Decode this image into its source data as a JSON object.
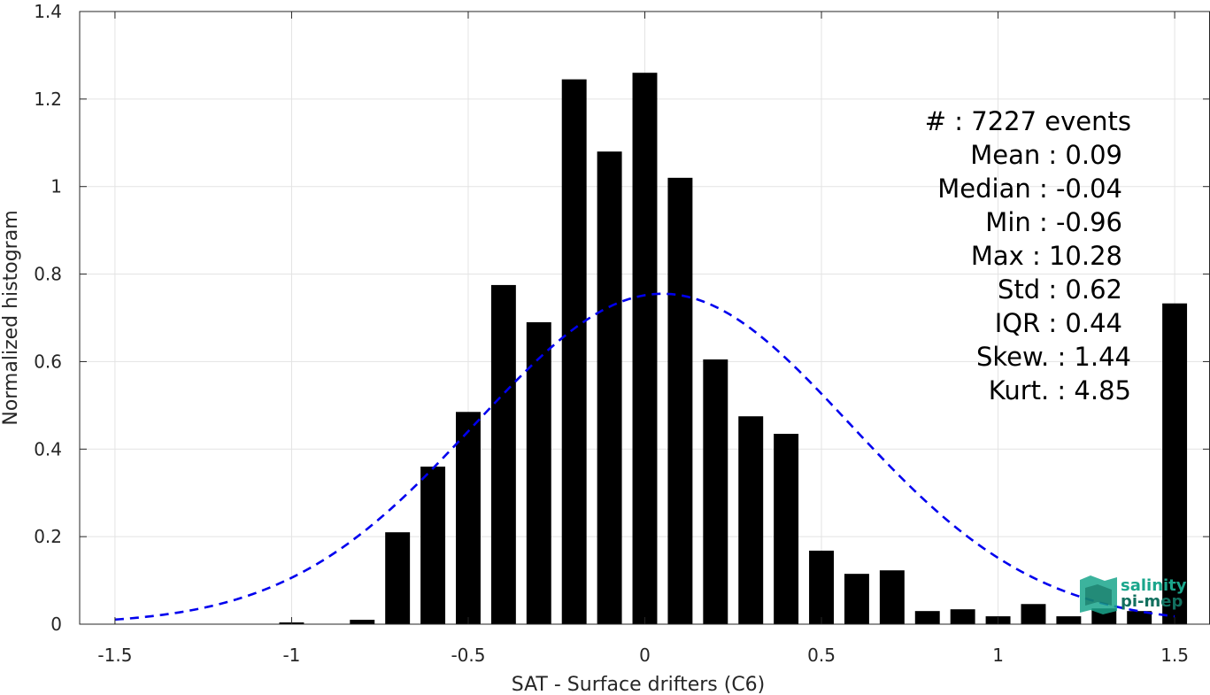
{
  "chart_data": {
    "type": "bar",
    "xlabel": "SAT - Surface drifters (C6)",
    "ylabel": "Normalized histogram",
    "xlim": [
      -1.6,
      1.6
    ],
    "ylim": [
      0,
      1.4
    ],
    "xticks": [
      -1.5,
      -1,
      -0.5,
      0,
      0.5,
      1,
      1.5
    ],
    "xtick_labels": [
      "-1.5",
      "-1",
      "-0.5",
      "0",
      "0.5",
      "1",
      "1.5"
    ],
    "yticks": [
      0,
      0.2,
      0.4,
      0.6,
      0.8,
      1,
      1.2,
      1.4
    ],
    "ytick_labels": [
      "0",
      "0.2",
      "0.4",
      "0.6",
      "0.8",
      "1",
      "1.2",
      "1.4"
    ],
    "grid": true,
    "bar_width": 0.07,
    "bar_color": "#000000",
    "bars": {
      "x": [
        -1.0,
        -0.9,
        -0.8,
        -0.7,
        -0.6,
        -0.5,
        -0.4,
        -0.3,
        -0.2,
        -0.1,
        0.0,
        0.1,
        0.2,
        0.3,
        0.4,
        0.5,
        0.6,
        0.7,
        0.8,
        0.9,
        1.0,
        1.1,
        1.2,
        1.3,
        1.4,
        1.5
      ],
      "values": [
        0.004,
        0.001,
        0.01,
        0.21,
        0.36,
        0.485,
        0.775,
        0.69,
        1.245,
        1.08,
        1.26,
        1.02,
        0.605,
        0.475,
        0.435,
        0.168,
        0.115,
        0.123,
        0.03,
        0.034,
        0.018,
        0.046,
        0.018,
        0.036,
        0.03,
        0.733
      ]
    },
    "fit_curve": {
      "style": "dashed",
      "color": "#0000ee",
      "mean": 0.05,
      "std": 0.53,
      "peak": 0.755,
      "x_range": [
        -1.5,
        1.5
      ]
    }
  },
  "stats": [
    {
      "label": "#  : 7227 events",
      "anchor_x": 1278
    },
    {
      "label": "Mean : 0.09",
      "anchor_x": 1268
    },
    {
      "label": "Median : -0.04",
      "anchor_x": 1268
    },
    {
      "label": "Min : -0.96",
      "anchor_x": 1268
    },
    {
      "label": "Max : 10.28",
      "anchor_x": 1268
    },
    {
      "label": "Std : 0.62",
      "anchor_x": 1268
    },
    {
      "label": "IQR : 0.44",
      "anchor_x": 1268
    },
    {
      "label": "Skew. : 1.44",
      "anchor_x": 1278
    },
    {
      "label": "Kurt. : 4.85",
      "anchor_x": 1278
    }
  ],
  "logo": {
    "line1": "salinity",
    "line2": "pi-mep",
    "color": "#1aa68c",
    "color_dark": "#12705f"
  }
}
